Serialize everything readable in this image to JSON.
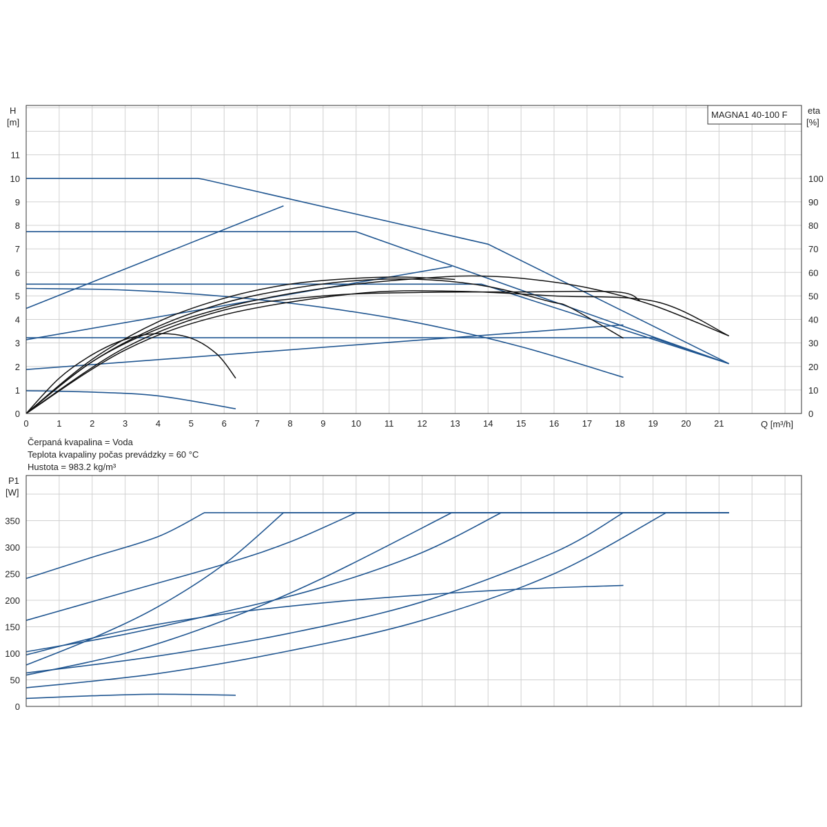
{
  "chart_data": [
    {
      "type": "line",
      "legend": "MAGNA1 40-100 F",
      "xlabel": "Q [m³/h]",
      "ylabel_line1": "H",
      "ylabel_line2": "[m]",
      "y2label_line1": "eta",
      "y2label_line2": "[%]",
      "xlim": [
        0,
        23.5
      ],
      "ylim": [
        0,
        13.1
      ],
      "y2lim": [
        0,
        131
      ],
      "x_ticks": [
        "0",
        "1",
        "2",
        "3",
        "4",
        "5",
        "6",
        "7",
        "8",
        "9",
        "10",
        "11",
        "12",
        "13",
        "14",
        "15",
        "16",
        "17",
        "18",
        "19",
        "20",
        "21"
      ],
      "y_ticks": [
        "0",
        "1",
        "2",
        "3",
        "4",
        "5",
        "6",
        "7",
        "8",
        "9",
        "10",
        "11"
      ],
      "y2_ticks": [
        "0",
        "10",
        "20",
        "30",
        "40",
        "50",
        "60",
        "70",
        "80",
        "90",
        "100"
      ],
      "grid": true,
      "head_curves": [
        {
          "name": "",
          "x": [
            0,
            5.2,
            5.4,
            14,
            21.3
          ],
          "y": [
            10,
            10,
            9.95,
            7.2,
            2.12
          ]
        },
        {
          "name": "",
          "x": [
            0,
            10,
            21.3
          ],
          "y": [
            7.73,
            7.73,
            2.12
          ]
        },
        {
          "name": "",
          "x": [
            0,
            13.8,
            21.3
          ],
          "y": [
            5.5,
            5.5,
            2.12
          ]
        },
        {
          "name": "",
          "x": [
            0,
            19,
            21.3
          ],
          "y": [
            3.22,
            3.22,
            2.12
          ]
        },
        {
          "name": "",
          "x": [
            0,
            7.8
          ],
          "y": [
            4.47,
            8.83
          ]
        },
        {
          "name": "",
          "x": [
            0,
            12.9
          ],
          "y": [
            3.14,
            6.26
          ]
        },
        {
          "name": "",
          "x": [
            0,
            18.1
          ],
          "y": [
            1.87,
            3.77
          ]
        },
        {
          "name": "",
          "x": [
            0,
            3,
            6,
            9,
            12,
            15,
            18.1
          ],
          "y": [
            5.32,
            5.25,
            4.98,
            4.51,
            3.82,
            2.84,
            1.54
          ]
        },
        {
          "name": "",
          "x": [
            0,
            2,
            4,
            6.35
          ],
          "y": [
            0.97,
            0.91,
            0.75,
            0.2
          ]
        }
      ],
      "eta_curves": [
        {
          "name": "",
          "x": [
            0,
            2,
            4,
            6,
            8,
            10,
            12,
            13.5,
            15,
            17,
            19,
            21.3
          ],
          "y": [
            0,
            22,
            36,
            45,
            51,
            55,
            57.5,
            58.5,
            57.5,
            53.5,
            46,
            33
          ]
        },
        {
          "name": "",
          "x": [
            0,
            2,
            4,
            6,
            8,
            10,
            12,
            14,
            15.9,
            16.5,
            18.1
          ],
          "y": [
            0,
            22,
            37,
            47,
            53,
            56.5,
            57,
            54,
            47.5,
            45,
            32
          ]
        },
        {
          "name": "",
          "x": [
            0,
            2,
            4,
            6,
            8,
            10,
            11.5,
            13
          ],
          "y": [
            0,
            23,
            39,
            49,
            55,
            57.5,
            58,
            57
          ]
        },
        {
          "name": "",
          "x": [
            0,
            1,
            2,
            3,
            4,
            5,
            5.8,
            6.35
          ],
          "y": [
            0,
            15,
            25,
            31.5,
            34,
            32,
            25,
            15
          ]
        },
        {
          "name": "",
          "x": [
            0,
            3,
            6,
            9,
            12,
            15,
            17.9,
            18.6
          ],
          "y": [
            0,
            28,
            44,
            50,
            51.5,
            51.7,
            51.7,
            48
          ]
        },
        {
          "name": "",
          "x": [
            0,
            3,
            6,
            10,
            13,
            16,
            19.1,
            21.3
          ],
          "y": [
            0,
            27,
            42,
            51,
            52,
            50,
            47.5,
            33
          ]
        }
      ]
    },
    {
      "type": "line",
      "ylabel_line1": "P1",
      "ylabel_line2": "[W]",
      "xlim": [
        0,
        23.5
      ],
      "ylim": [
        0,
        435
      ],
      "y_ticks": [
        "0",
        "50",
        "100",
        "150",
        "200",
        "250",
        "300",
        "350"
      ],
      "grid": true,
      "power_curves": [
        {
          "name": "",
          "x": [
            0,
            2,
            4,
            5.4,
            21.3
          ],
          "y": [
            241,
            281,
            320,
            365,
            365
          ]
        },
        {
          "name": "",
          "x": [
            0,
            3,
            6,
            8,
            10,
            21.3
          ],
          "y": [
            162,
            215,
            268,
            310,
            365,
            365
          ]
        },
        {
          "name": "",
          "x": [
            0,
            2,
            4,
            6,
            7.8,
            21.3
          ],
          "y": [
            78,
            128,
            188,
            268,
            365,
            365
          ]
        },
        {
          "name": "",
          "x": [
            0,
            3,
            6,
            9,
            12.9,
            21.3
          ],
          "y": [
            59,
            100,
            162,
            242,
            365,
            365
          ]
        },
        {
          "name": "",
          "x": [
            0,
            3,
            6,
            9,
            12,
            14.4,
            21.3
          ],
          "y": [
            103,
            136,
            178,
            225,
            290,
            365,
            365
          ]
        },
        {
          "name": "",
          "x": [
            0,
            4,
            8,
            12,
            16,
            18.1,
            21.3
          ],
          "y": [
            63,
            95,
            138,
            197,
            290,
            365,
            365
          ]
        },
        {
          "name": "",
          "x": [
            0,
            4,
            8,
            12,
            16,
            19.4,
            21.3
          ],
          "y": [
            35,
            62,
            105,
            162,
            250,
            365,
            365
          ]
        },
        {
          "name": "",
          "x": [
            0,
            3,
            6,
            9,
            12,
            15,
            18.1
          ],
          "y": [
            97,
            143,
            174,
            195,
            210,
            221,
            228
          ]
        },
        {
          "name": "",
          "x": [
            0,
            2,
            4,
            6.35
          ],
          "y": [
            15,
            20,
            23,
            21
          ]
        }
      ]
    }
  ],
  "info": {
    "line1": "Čerpaná kvapalina = Voda",
    "line2": "Teplota kvapaliny počas prevádzky = 60 °C",
    "line3": "Hustota = 983.2 kg/m³"
  }
}
